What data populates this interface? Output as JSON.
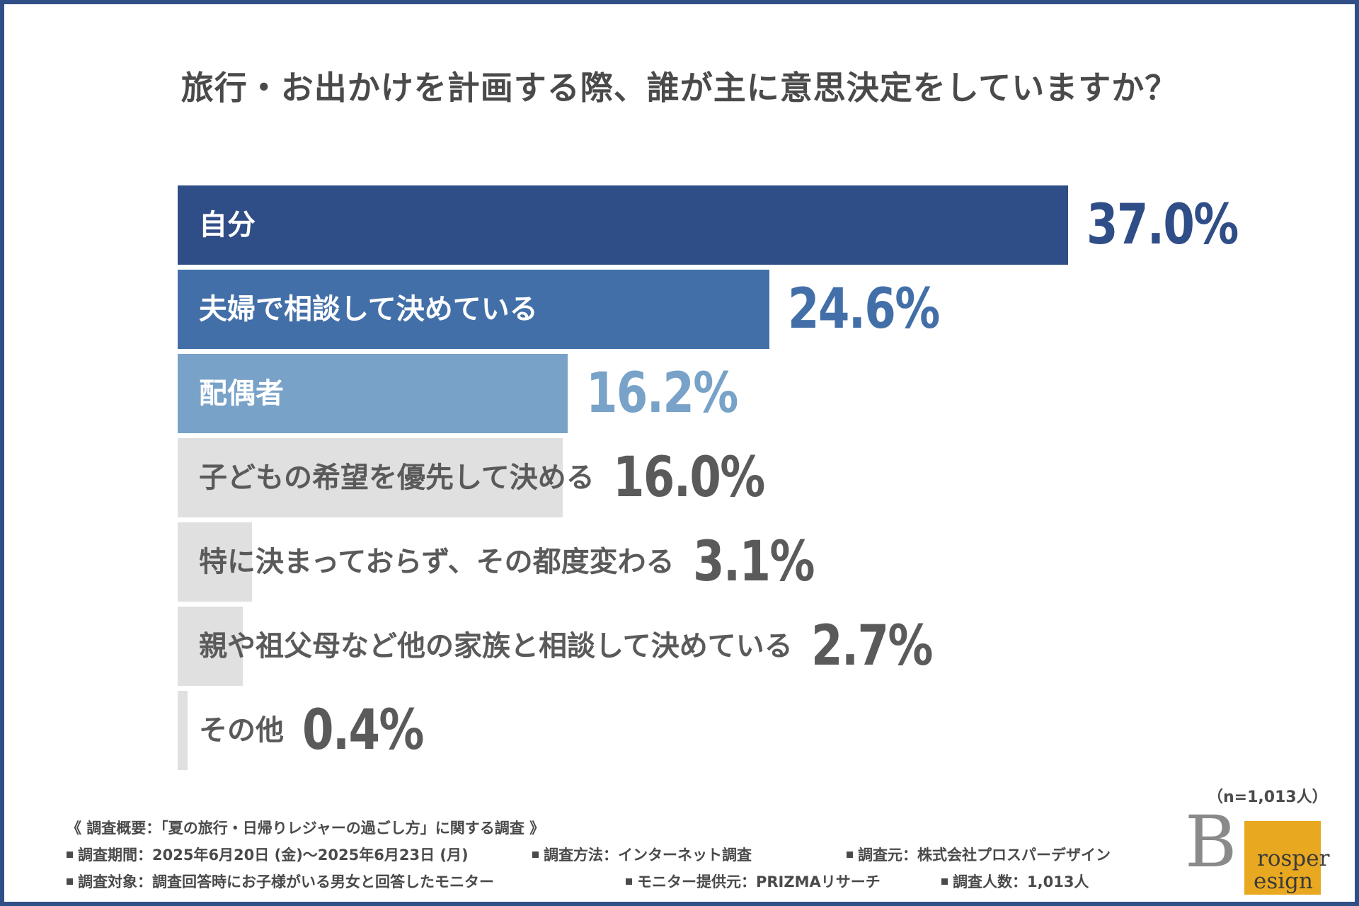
{
  "title": "旅行・お出かけを計画する際、誰が主に意思決定をしていますか？",
  "chart_data": {
    "type": "bar",
    "orientation": "horizontal",
    "title": "旅行・お出かけを計画する際、誰が主に意思決定をしていますか？",
    "categories": [
      "自分",
      "夫婦で相談して決めている",
      "配偶者",
      "子どもの希望を優先して決める",
      "特に決まっておらず、その都度変わる",
      "親や祖父母など他の家族と相談して決めている",
      "その他"
    ],
    "values": [
      37.0,
      24.6,
      16.2,
      16.0,
      3.1,
      2.7,
      0.4
    ],
    "value_labels": [
      "37.0%",
      "24.6%",
      "16.2%",
      "16.0%",
      "3.1%",
      "2.7%",
      "0.4%"
    ],
    "bar_colors": [
      "#2f4d86",
      "#436fa8",
      "#78a2c7",
      "#e0e0e0",
      "#e0e0e0",
      "#e0e0e0",
      "#e0e0e0"
    ],
    "label_colors": [
      "#ffffff",
      "#ffffff",
      "#ffffff",
      "#5a5a5a",
      "#5a5a5a",
      "#5a5a5a",
      "#5a5a5a"
    ],
    "value_colors": [
      "#2f4d86",
      "#436fa8",
      "#78a2c7",
      "#5a5a5a",
      "#5a5a5a",
      "#5a5a5a",
      "#5a5a5a"
    ],
    "xlim": [
      0,
      37.0
    ],
    "grid": false,
    "legend": "none"
  },
  "sample_note": "（n=1,013人）",
  "footer": {
    "overview": "《 調査概要：「夏の旅行・日帰りレジャーの過ごし方」に関する調査 》",
    "period": "調査期間：2025年6月20日 (金)〜2025年6月23日 (月)",
    "method": "調査方法：インターネット調査",
    "source": "調査元：株式会社プロスパーデザイン",
    "target": "調査対象：調査回答時にお子様がいる男女と回答したモニター",
    "provider": "モニター提供元：PRIZMAリサーチ",
    "count": "調査人数：1,013人"
  },
  "logo": {
    "letter_b": "B",
    "text_top": "rosper",
    "text_bottom": "esign"
  }
}
